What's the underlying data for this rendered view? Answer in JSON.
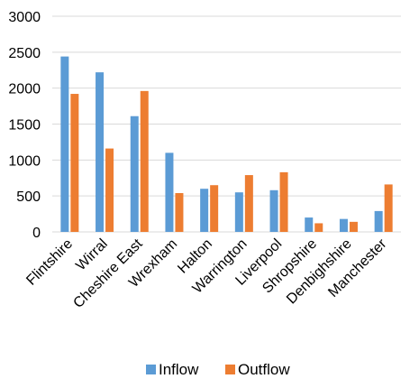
{
  "chart_data": {
    "type": "bar",
    "title": "",
    "xlabel": "",
    "ylabel": "",
    "ylim": [
      0,
      3000
    ],
    "yticks": [
      0,
      500,
      1000,
      1500,
      2000,
      2500,
      3000
    ],
    "grid": true,
    "legend_position": "bottom",
    "categories": [
      "Flintshire",
      "Wirral",
      "Cheshire East",
      "Wrexham",
      "Halton",
      "Warrington",
      "Liverpool",
      "Shropshire",
      "Denbighshire",
      "Manchester"
    ],
    "series": [
      {
        "name": "Inflow",
        "color": "#5B9BD5",
        "values": [
          2440,
          2220,
          1610,
          1100,
          600,
          550,
          580,
          200,
          180,
          290
        ]
      },
      {
        "name": "Outflow",
        "color": "#ED7D31",
        "values": [
          1920,
          1160,
          1960,
          540,
          650,
          790,
          830,
          120,
          140,
          660
        ]
      }
    ]
  }
}
